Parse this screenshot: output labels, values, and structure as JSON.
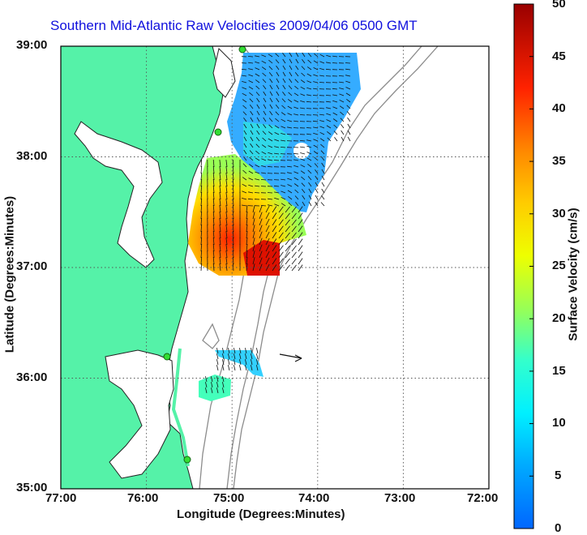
{
  "title": "Southern Mid-Atlantic Raw Velocities 2009/04/06 0500 GMT",
  "x_axis": {
    "label": "Longitude (Degrees:Minutes)",
    "ticks": [
      "77:00",
      "76:00",
      "75:00",
      "74:00",
      "73:00",
      "72:00"
    ]
  },
  "y_axis": {
    "label": "Latitude (Degrees:Minutes)",
    "ticks": [
      "39:00",
      "38:00",
      "37:00",
      "36:00",
      "35:00"
    ]
  },
  "colorbar": {
    "label": "Surface Velocity (cm/s)",
    "ticks": [
      "50",
      "45",
      "40",
      "35",
      "30",
      "25",
      "20",
      "15",
      "10",
      "5",
      "0"
    ],
    "range": [
      0,
      50
    ]
  },
  "colors": {
    "title": "#1010dd",
    "land": "#55f2a8",
    "contour": "#8c8c8c",
    "gridline": "#555555"
  },
  "map_extent": {
    "lon_range": [
      -77,
      -72
    ],
    "lat_range": [
      35,
      39
    ]
  },
  "station_markers": [
    {
      "lon": -74.83,
      "lat": 38.97
    },
    {
      "lon": -75.1,
      "lat": 38.22
    },
    {
      "lon": -75.65,
      "lat": 36.18
    },
    {
      "lon": -75.48,
      "lat": 35.25
    }
  ],
  "reference_vector": {
    "lon": -74.4,
    "lat": 36.15
  }
}
